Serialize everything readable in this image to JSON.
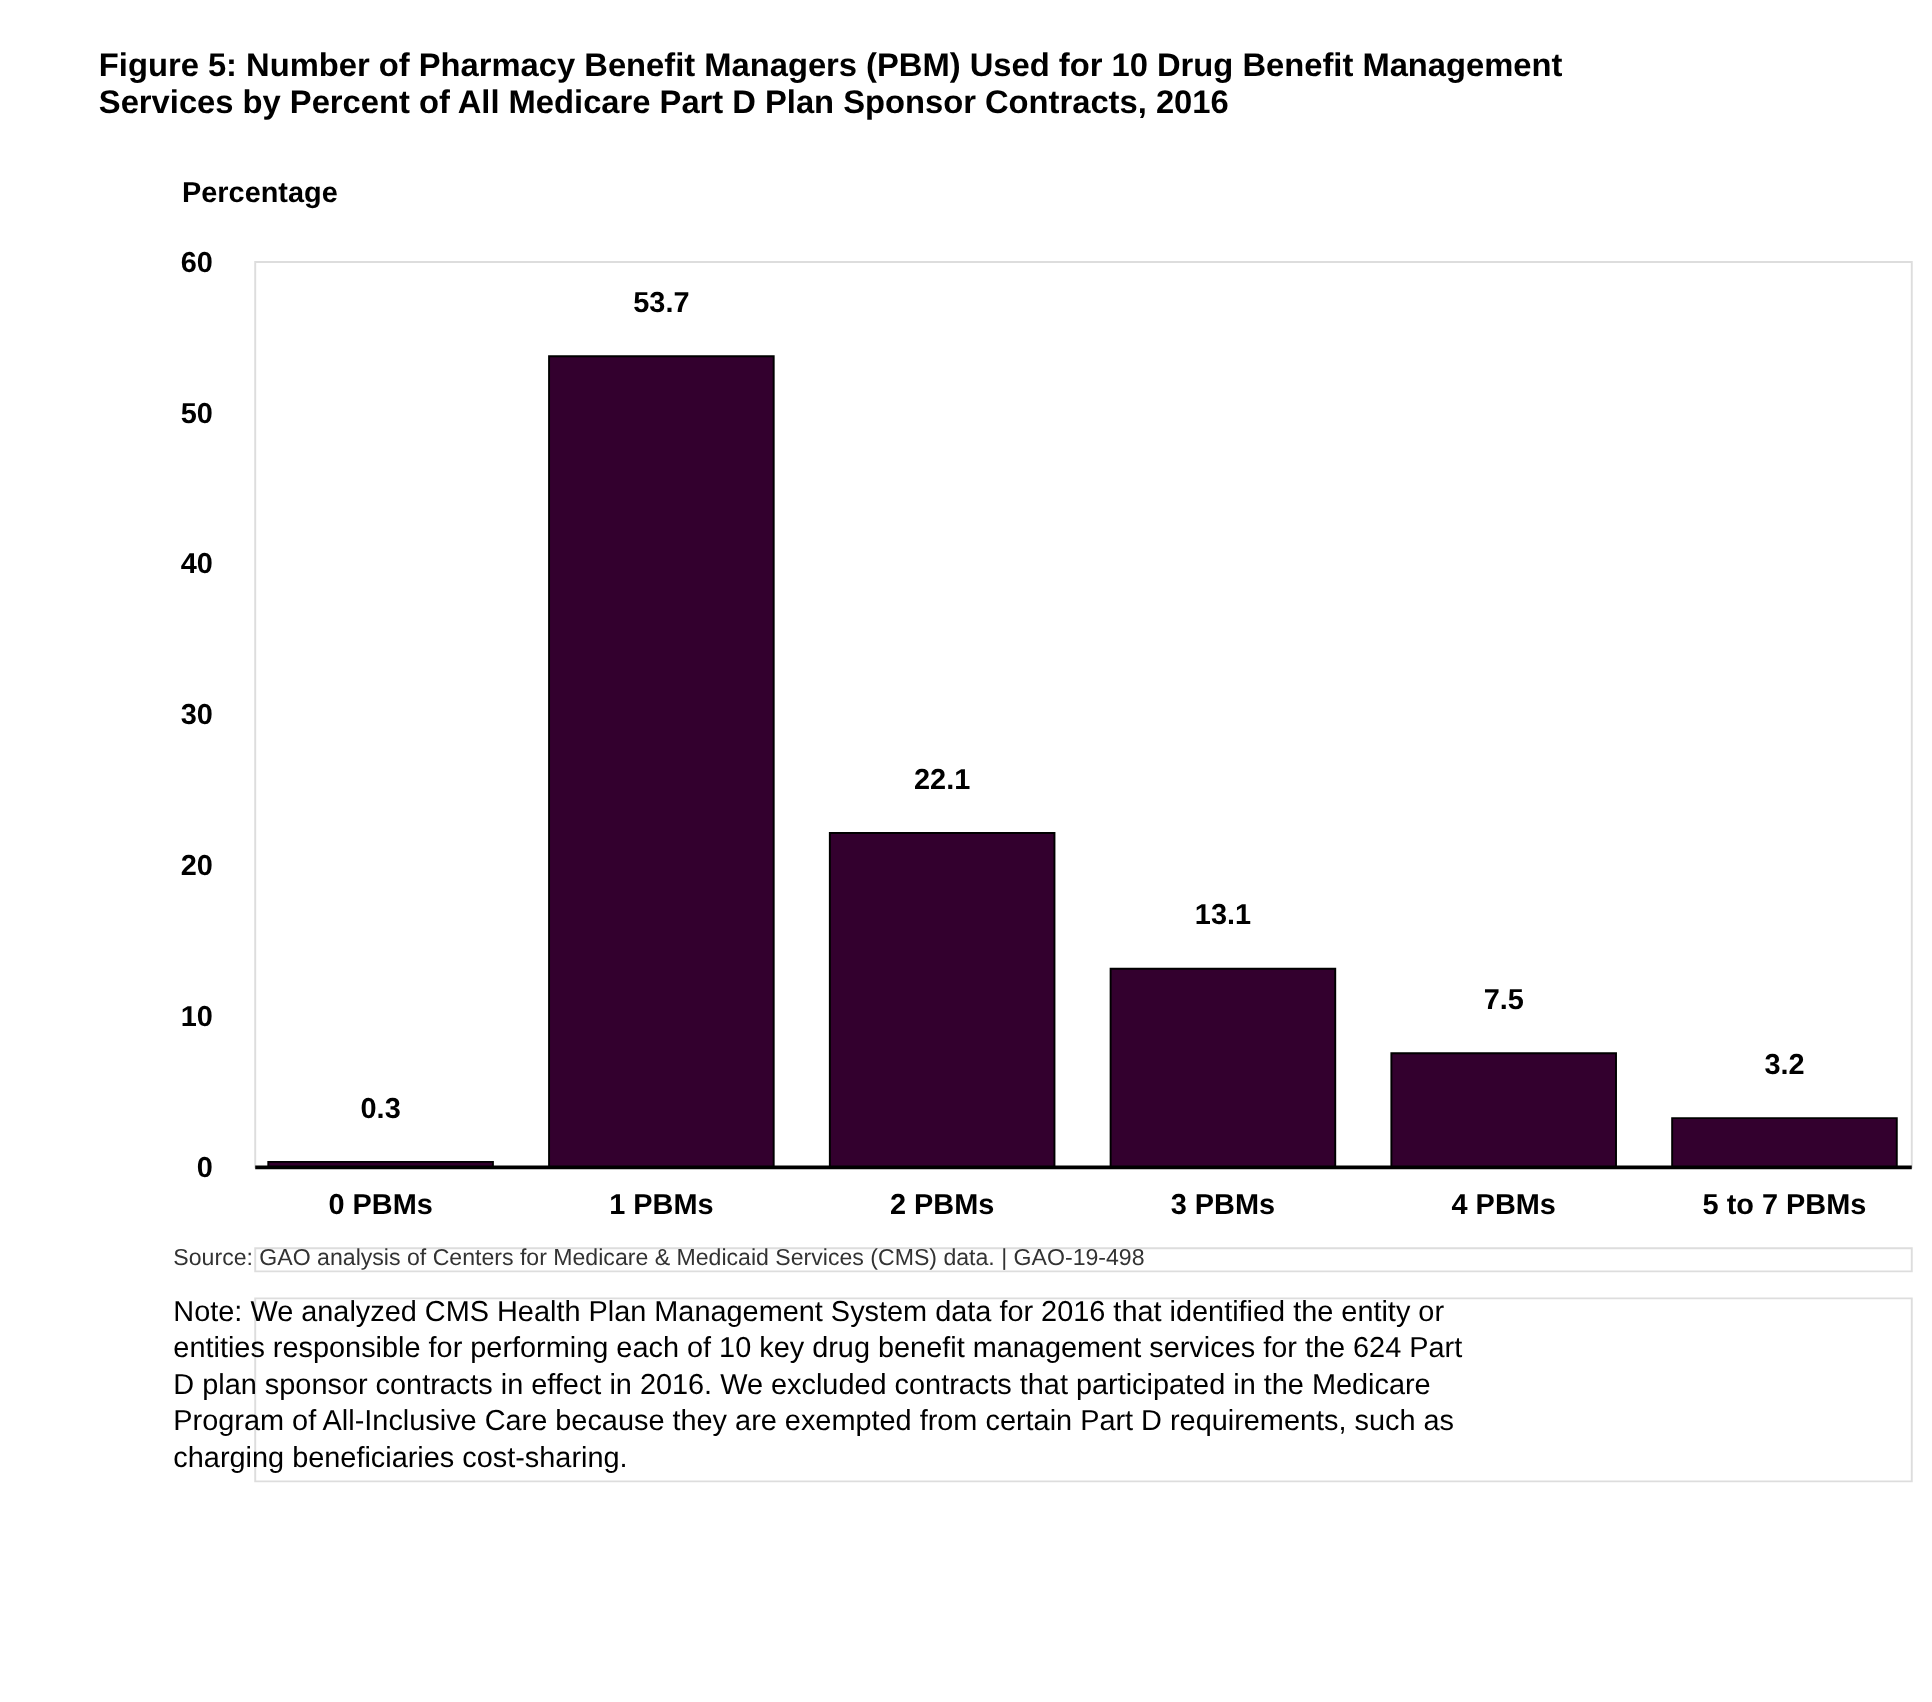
{
  "chart_data": {
    "type": "bar",
    "title": "Figure 5: Number of Pharmacy Benefit Managers (PBM) Used for 10 Drug Benefit Management Services by Percent of All Medicare Part D Plan Sponsor Contracts, 2016",
    "ylabel": "Percentage",
    "categories": [
      "0 PBMs",
      "1 PBMs",
      "2 PBMs",
      "3 PBMs",
      "4 PBMs",
      "5 to 7 PBMs"
    ],
    "values": [
      0.3,
      53.7,
      22.1,
      13.1,
      7.5,
      3.2
    ],
    "color": "#33002e",
    "data_labels": true,
    "ylim": [
      0,
      60
    ],
    "yticks": [
      0,
      10,
      20,
      30,
      40,
      50,
      60
    ],
    "grid": false,
    "annotations": [
      "Source: GAO analysis of Centers for Medicare & Medicaid Services (CMS) data.  |  GAO-19-498",
      "Note: We analyzed CMS Health Plan Management System data for 2016 that identified the entity or entities responsible for performing each of 10 key drug benefit management services for the 624 Part D plan sponsor contracts in effect in 2016. We excluded contracts that participated in the Medicare Program of All-Inclusive Care because they are exempted from certain Part D requirements, such as charging beneficiaries cost-sharing."
    ]
  }
}
